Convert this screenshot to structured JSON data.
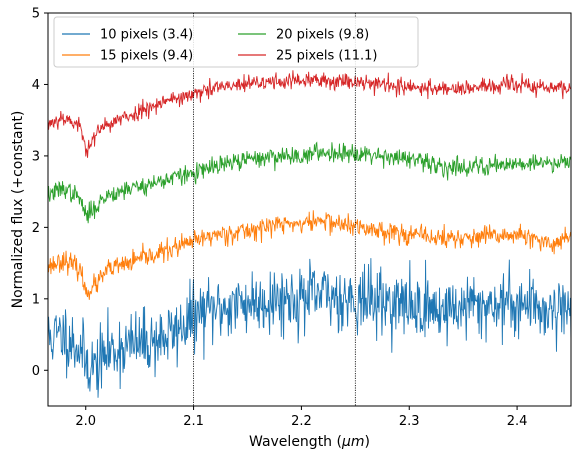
{
  "chart_data": {
    "type": "line",
    "xlabel": "Wavelength (",
    "xlabel_unit": "μm",
    "xlabel_close": ")",
    "ylabel": "Normalized flux (+constant)",
    "xlim": [
      1.965,
      2.45
    ],
    "ylim": [
      -0.5,
      5.0
    ],
    "xticks": [
      2.0,
      2.1,
      2.2,
      2.3,
      2.4
    ],
    "xtick_labels": [
      "2.0",
      "2.1",
      "2.2",
      "2.3",
      "2.4"
    ],
    "yticks": [
      0,
      1,
      2,
      3,
      4,
      5
    ],
    "ytick_labels": [
      "0",
      "1",
      "2",
      "3",
      "4",
      "5"
    ],
    "reference_lines_x": [
      2.1,
      2.25
    ],
    "grid": false,
    "legend_position": "top-left",
    "legend_columns": 2,
    "series": [
      {
        "name": "10 pixels (3.4)",
        "color": "#1f77b4",
        "noise": 0.42,
        "seed": 11,
        "x": [
          1.965,
          1.98,
          1.995,
          2.0,
          2.01,
          2.02,
          2.04,
          2.06,
          2.08,
          2.1,
          2.12,
          2.15,
          2.18,
          2.2,
          2.22,
          2.25,
          2.28,
          2.3,
          2.33,
          2.36,
          2.4,
          2.43,
          2.45
        ],
        "y": [
          0.45,
          0.5,
          0.3,
          0.1,
          0.05,
          0.25,
          0.35,
          0.4,
          0.5,
          0.75,
          0.85,
          0.95,
          1.0,
          1.0,
          1.05,
          1.0,
          0.95,
          0.9,
          0.85,
          0.9,
          0.95,
          0.85,
          0.9
        ]
      },
      {
        "name": "15 pixels (9.4)",
        "color": "#ff7f0e",
        "noise": 0.13,
        "seed": 23,
        "x": [
          1.965,
          1.98,
          1.995,
          2.0,
          2.01,
          2.02,
          2.04,
          2.06,
          2.08,
          2.1,
          2.12,
          2.15,
          2.18,
          2.2,
          2.22,
          2.25,
          2.28,
          2.3,
          2.33,
          2.36,
          2.4,
          2.43,
          2.45
        ],
        "y": [
          1.45,
          1.55,
          1.4,
          1.1,
          1.2,
          1.4,
          1.5,
          1.6,
          1.7,
          1.8,
          1.9,
          1.95,
          2.05,
          2.05,
          2.1,
          2.0,
          1.95,
          1.9,
          1.85,
          1.85,
          1.9,
          1.75,
          1.9
        ]
      },
      {
        "name": "20 pixels (9.8)",
        "color": "#2ca02c",
        "noise": 0.12,
        "seed": 37,
        "x": [
          1.965,
          1.98,
          1.995,
          2.0,
          2.01,
          2.02,
          2.04,
          2.06,
          2.08,
          2.1,
          2.12,
          2.15,
          2.18,
          2.2,
          2.22,
          2.25,
          2.28,
          2.3,
          2.33,
          2.36,
          2.4,
          2.43,
          2.45
        ],
        "y": [
          2.45,
          2.55,
          2.4,
          2.15,
          2.3,
          2.45,
          2.55,
          2.6,
          2.7,
          2.75,
          2.85,
          2.95,
          3.0,
          3.0,
          3.05,
          3.05,
          3.0,
          2.95,
          2.85,
          2.85,
          2.9,
          2.9,
          2.95
        ]
      },
      {
        "name": "25 pixels (11.1)",
        "color": "#d62728",
        "noise": 0.11,
        "seed": 53,
        "x": [
          1.965,
          1.98,
          1.995,
          2.0,
          2.01,
          2.02,
          2.04,
          2.06,
          2.08,
          2.1,
          2.12,
          2.15,
          2.18,
          2.2,
          2.22,
          2.25,
          2.28,
          2.3,
          2.33,
          2.36,
          2.4,
          2.43,
          2.45
        ],
        "y": [
          3.45,
          3.55,
          3.4,
          3.1,
          3.3,
          3.45,
          3.55,
          3.7,
          3.8,
          3.85,
          3.95,
          4.0,
          4.05,
          4.05,
          4.05,
          4.05,
          4.0,
          3.95,
          3.95,
          3.95,
          4.0,
          3.95,
          3.95
        ]
      }
    ]
  }
}
